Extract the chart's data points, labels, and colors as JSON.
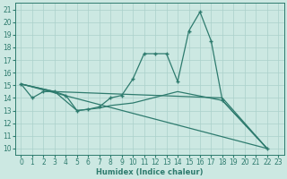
{
  "xlabel": "Humidex (Indice chaleur)",
  "background_color": "#cce8e2",
  "grid_color": "#aad0ca",
  "line_color": "#2e7b6e",
  "xlim": [
    -0.5,
    23.5
  ],
  "ylim": [
    9.5,
    21.5
  ],
  "xticks": [
    0,
    1,
    2,
    3,
    4,
    5,
    6,
    7,
    8,
    9,
    10,
    11,
    12,
    13,
    14,
    15,
    16,
    17,
    18,
    19,
    20,
    21,
    22,
    23
  ],
  "yticks": [
    10,
    11,
    12,
    13,
    14,
    15,
    16,
    17,
    18,
    19,
    20,
    21
  ],
  "main_x": [
    0,
    1,
    2,
    3,
    4,
    5,
    6,
    7,
    8,
    9,
    10,
    11,
    12,
    13,
    14,
    15,
    16,
    17,
    18,
    22
  ],
  "main_y": [
    15.1,
    14.0,
    14.5,
    14.5,
    14.2,
    13.0,
    13.1,
    13.3,
    14.0,
    14.2,
    15.5,
    17.5,
    17.5,
    17.5,
    15.3,
    19.3,
    20.8,
    18.5,
    13.8,
    10.0
  ],
  "line1_x": [
    0,
    3,
    18,
    22
  ],
  "line1_y": [
    15.1,
    14.5,
    14.0,
    10.0
  ],
  "line2_x": [
    0,
    3,
    5,
    6,
    7,
    8,
    9,
    10,
    14,
    18,
    22
  ],
  "line2_y": [
    15.1,
    14.5,
    13.0,
    13.1,
    13.2,
    13.4,
    13.5,
    13.6,
    14.5,
    13.8,
    10.0
  ],
  "line3_x": [
    0,
    22
  ],
  "line3_y": [
    15.1,
    10.0
  ]
}
